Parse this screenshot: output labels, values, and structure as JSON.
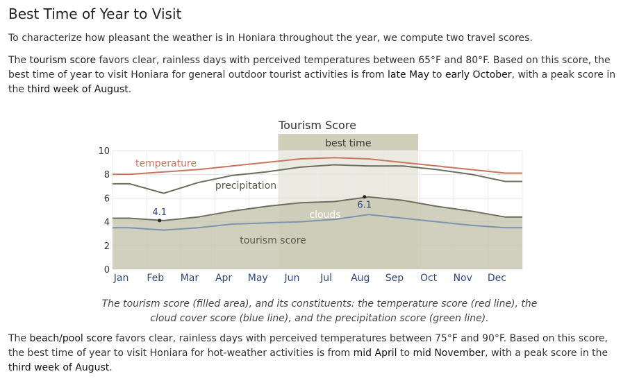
{
  "heading": "Best Time of Year to Visit",
  "intro": "To characterize how pleasant the weather is in Honiara throughout the year, we compute two travel scores.",
  "tourism_para": {
    "t1": "The ",
    "k1": "tourism score",
    "t2": " favors clear, rainless days with perceived temperatures between 65°F and 80°F. Based on this score, the best time of year to visit Honiara for general outdoor tourist activities is from ",
    "k2": "late May",
    "t3": " to ",
    "k3": "early October",
    "t4": ", with a peak score in the ",
    "k4": "third week of August",
    "t5": "."
  },
  "caption": {
    "t1": "The ",
    "k1": "tourism score",
    "t2": " (filled area), and its constituents: the temperature score (red line), the cloud cover score (blue line), and the precipitation score (green line)."
  },
  "beach_para": {
    "t1": "The ",
    "k1": "beach/pool score",
    "t2": " favors clear, rainless days with perceived temperatures between 75°F and 90°F. Based on this score, the best time of year to visit Honiara for hot-weather activities is from ",
    "k2": "mid April",
    "t3": " to ",
    "k3": "mid November",
    "t4": ", with a peak score in the ",
    "k4": "third week of August",
    "t5": "."
  },
  "colors": {
    "temperature": "#c8745e",
    "precipitation": "#6b6f5e",
    "clouds": "#7d93b0",
    "fill": "#c9c8b3",
    "best_band": "#d9d9c8"
  },
  "chart_data": {
    "type": "area",
    "title": "Tourism Score",
    "x": [
      "Jan",
      "Feb",
      "Mar",
      "Apr",
      "May",
      "Jun",
      "Jul",
      "Aug",
      "Sep",
      "Oct",
      "Nov",
      "Dec"
    ],
    "ylim": [
      0,
      10
    ],
    "yticks": [
      0,
      2,
      4,
      6,
      8,
      10
    ],
    "grid": true,
    "best_time_label": "best time",
    "best_time_range": [
      "late May",
      "early October"
    ],
    "series": [
      {
        "name": "temperature",
        "values": [
          8.0,
          8.2,
          8.4,
          8.7,
          9.0,
          9.3,
          9.4,
          9.3,
          9.0,
          8.7,
          8.4,
          8.1
        ]
      },
      {
        "name": "precipitation",
        "values": [
          7.2,
          6.4,
          7.3,
          7.9,
          8.2,
          8.6,
          8.8,
          8.7,
          8.7,
          8.4,
          8.0,
          7.4
        ]
      },
      {
        "name": "clouds",
        "values": [
          3.5,
          3.3,
          3.5,
          3.8,
          3.9,
          4.0,
          4.2,
          4.6,
          4.3,
          4.0,
          3.7,
          3.5
        ]
      },
      {
        "name": "tourism score",
        "values": [
          4.3,
          4.1,
          4.4,
          4.9,
          5.3,
          5.6,
          5.7,
          6.1,
          5.8,
          5.3,
          4.9,
          4.4
        ]
      }
    ],
    "annotations": [
      {
        "label": "4.1",
        "x": "Feb",
        "y": 4.1
      },
      {
        "label": "6.1",
        "x": "Aug",
        "y": 6.1
      }
    ]
  }
}
